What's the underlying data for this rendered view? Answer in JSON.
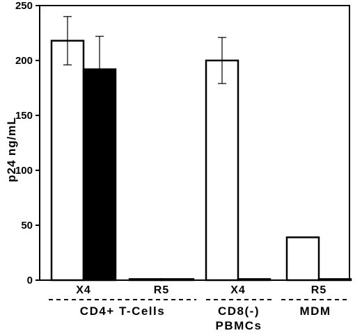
{
  "chart_data": {
    "type": "bar",
    "ylabel": "p24 ng/mL",
    "ylim": [
      0,
      250
    ],
    "yticks": [
      0,
      50,
      100,
      150,
      200,
      250
    ],
    "categories": [
      "X4",
      "R5",
      "X4",
      "R5"
    ],
    "groups": [
      {
        "label_lines": [
          "CD4+ T-Cells"
        ],
        "categories": [
          0,
          1
        ]
      },
      {
        "label_lines": [
          "CD8(-)",
          "PBMCs"
        ],
        "categories": [
          2
        ]
      },
      {
        "label_lines": [
          "MDM"
        ],
        "categories": [
          3
        ]
      }
    ],
    "series": [
      {
        "fill": "#ffffff",
        "values": [
          218,
          1,
          200,
          39
        ],
        "errors": [
          22,
          null,
          21,
          null
        ]
      },
      {
        "fill": "#000000",
        "values": [
          192,
          1,
          1,
          1
        ],
        "errors": [
          30,
          null,
          null,
          null
        ]
      }
    ],
    "grid": false,
    "legend": "none"
  }
}
